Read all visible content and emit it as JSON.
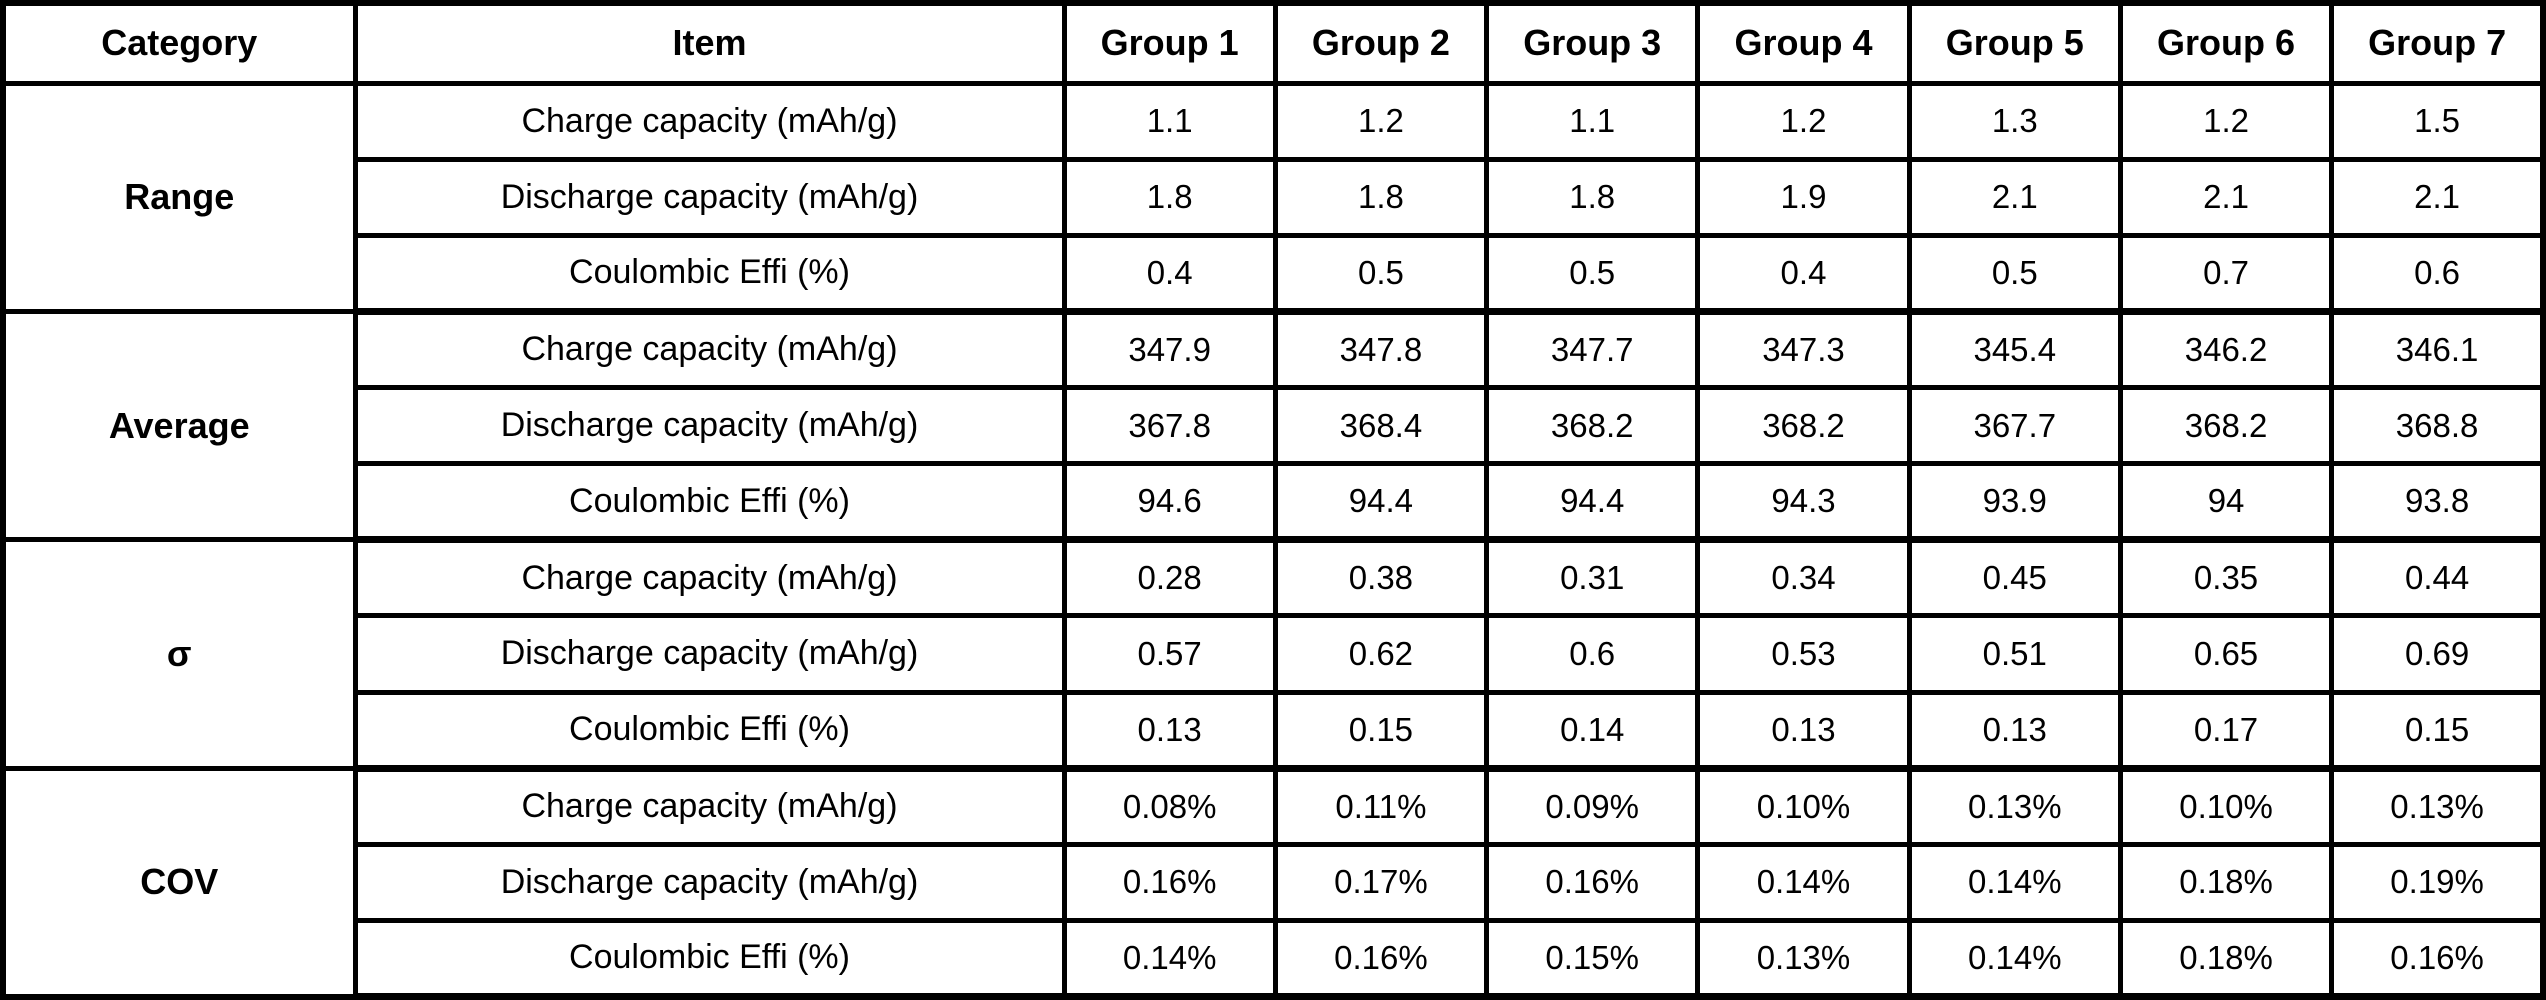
{
  "chart_data": {
    "type": "table",
    "columns": [
      "Category",
      "Item",
      "Group 1",
      "Group 2",
      "Group 3",
      "Group 4",
      "Group 5",
      "Group 6",
      "Group 7"
    ],
    "sections": [
      {
        "category": "Range",
        "rows": [
          {
            "item": "Charge capacity (mAh/g)",
            "values": [
              "1.1",
              "1.2",
              "1.1",
              "1.2",
              "1.3",
              "1.2",
              "1.5"
            ]
          },
          {
            "item": "Discharge capacity (mAh/g)",
            "values": [
              "1.8",
              "1.8",
              "1.8",
              "1.9",
              "2.1",
              "2.1",
              "2.1"
            ]
          },
          {
            "item": "Coulombic Effi (%)",
            "values": [
              "0.4",
              "0.5",
              "0.5",
              "0.4",
              "0.5",
              "0.7",
              "0.6"
            ]
          }
        ]
      },
      {
        "category": "Average",
        "rows": [
          {
            "item": "Charge capacity (mAh/g)",
            "values": [
              "347.9",
              "347.8",
              "347.7",
              "347.3",
              "345.4",
              "346.2",
              "346.1"
            ]
          },
          {
            "item": "Discharge capacity (mAh/g)",
            "values": [
              "367.8",
              "368.4",
              "368.2",
              "368.2",
              "367.7",
              "368.2",
              "368.8"
            ]
          },
          {
            "item": "Coulombic Effi (%)",
            "values": [
              "94.6",
              "94.4",
              "94.4",
              "94.3",
              "93.9",
              "94",
              "93.8"
            ]
          }
        ]
      },
      {
        "category": "σ",
        "rows": [
          {
            "item": "Charge capacity (mAh/g)",
            "values": [
              "0.28",
              "0.38",
              "0.31",
              "0.34",
              "0.45",
              "0.35",
              "0.44"
            ]
          },
          {
            "item": "Discharge capacity (mAh/g)",
            "values": [
              "0.57",
              "0.62",
              "0.6",
              "0.53",
              "0.51",
              "0.65",
              "0.69"
            ]
          },
          {
            "item": "Coulombic Effi (%)",
            "values": [
              "0.13",
              "0.15",
              "0.14",
              "0.13",
              "0.13",
              "0.17",
              "0.15"
            ]
          }
        ]
      },
      {
        "category": "COV",
        "rows": [
          {
            "item": "Charge capacity (mAh/g)",
            "values": [
              "0.08%",
              "0.11%",
              "0.09%",
              "0.10%",
              "0.13%",
              "0.10%",
              "0.13%"
            ]
          },
          {
            "item": "Discharge capacity (mAh/g)",
            "values": [
              "0.16%",
              "0.17%",
              "0.16%",
              "0.14%",
              "0.14%",
              "0.18%",
              "0.19%"
            ]
          },
          {
            "item": "Coulombic Effi (%)",
            "values": [
              "0.14%",
              "0.16%",
              "0.15%",
              "0.13%",
              "0.14%",
              "0.18%",
              "0.16%"
            ]
          }
        ]
      }
    ],
    "colors": {
      "border": "#000000",
      "background": "#ffffff",
      "text": "#000000"
    },
    "layout": {
      "legend": "none",
      "grid": "full-borders"
    }
  }
}
